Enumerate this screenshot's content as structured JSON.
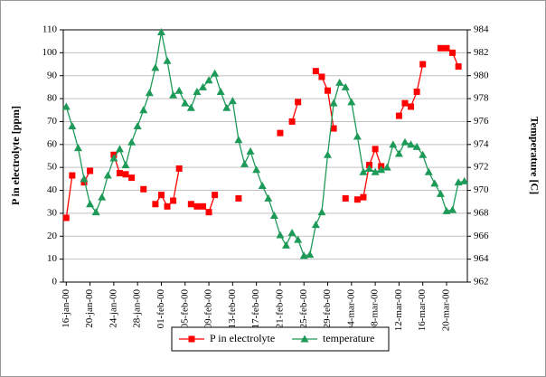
{
  "chart_data": {
    "type": "line",
    "ylabel": "P in electrolyte [ppm]",
    "y2label": "Temperature [C]",
    "categories": [
      "16-jan-00",
      null,
      null,
      null,
      "20-jan-00",
      null,
      null,
      null,
      "24-jan-00",
      null,
      null,
      null,
      "28-jan-00",
      null,
      null,
      null,
      "01-feb-00",
      null,
      null,
      null,
      "05-feb-00",
      null,
      null,
      null,
      "09-feb-00",
      null,
      null,
      null,
      "13-feb-00",
      null,
      null,
      null,
      "17-feb-00",
      null,
      null,
      null,
      "21-feb-00",
      null,
      null,
      null,
      "25-feb-00",
      null,
      null,
      null,
      "29-feb-00",
      null,
      null,
      null,
      "04-mar-00",
      null,
      null,
      null,
      "08-mar-00",
      null,
      null,
      null,
      "12-mar-00",
      null,
      null,
      null,
      "16-mar-00",
      null,
      null,
      null,
      "20-mar-00",
      null,
      null,
      null
    ],
    "series": [
      {
        "name": "P in electrolyte",
        "color": "#ff0000",
        "marker": "square",
        "values": [
          28,
          46.5,
          null,
          43.5,
          48.5,
          null,
          null,
          null,
          55.5,
          47.5,
          47,
          45.5,
          null,
          40.5,
          null,
          34,
          38,
          33,
          35.5,
          49.5,
          null,
          34,
          33,
          33,
          30.5,
          38,
          null,
          null,
          null,
          36.5,
          null,
          null,
          null,
          null,
          null,
          null,
          65,
          null,
          70,
          78.5,
          null,
          null,
          92,
          89.5,
          83.5,
          67,
          null,
          36.5,
          null,
          36,
          37,
          51,
          58,
          50.5,
          null,
          null,
          72.5,
          78,
          76.5,
          83,
          95,
          null,
          null,
          102,
          102,
          100,
          94,
          null
        ]
      },
      {
        "name": "temperature",
        "color": "#1e9a58",
        "marker": "triangle",
        "axis": "y2",
        "values": [
          977.3,
          975.6,
          973.7,
          971.0,
          968.8,
          968.1,
          969.4,
          971.3,
          972.8,
          973.6,
          972.2,
          974.2,
          975.6,
          977.0,
          978.5,
          980.7,
          983.8,
          981.3,
          978.3,
          978.7,
          977.6,
          977.2,
          978.6,
          979.0,
          979.6,
          980.2,
          978.6,
          977.2,
          977.8,
          974.4,
          972.3,
          973.4,
          971.8,
          970.4,
          969.3,
          967.8,
          966.1,
          965.2,
          966.3,
          965.7,
          964.3,
          964.4,
          967.0,
          968.1,
          973.1,
          977.6,
          979.4,
          979.0,
          977.7,
          974.7,
          971.6,
          971.9,
          971.6,
          971.8,
          972.0,
          974.0,
          973.2,
          974.2,
          974.0,
          973.8,
          973.1,
          971.6,
          970.6,
          969.7,
          968.2,
          968.3,
          970.7,
          970.8
        ]
      }
    ],
    "ylim": [
      0,
      110
    ],
    "yticks": [
      0,
      10,
      20,
      30,
      40,
      50,
      60,
      70,
      80,
      90,
      100,
      110
    ],
    "y2lim": [
      962,
      984
    ],
    "y2ticks": [
      962,
      964,
      966,
      968,
      970,
      972,
      974,
      976,
      978,
      980,
      982,
      984
    ],
    "grid": true,
    "legend": "bottom"
  }
}
